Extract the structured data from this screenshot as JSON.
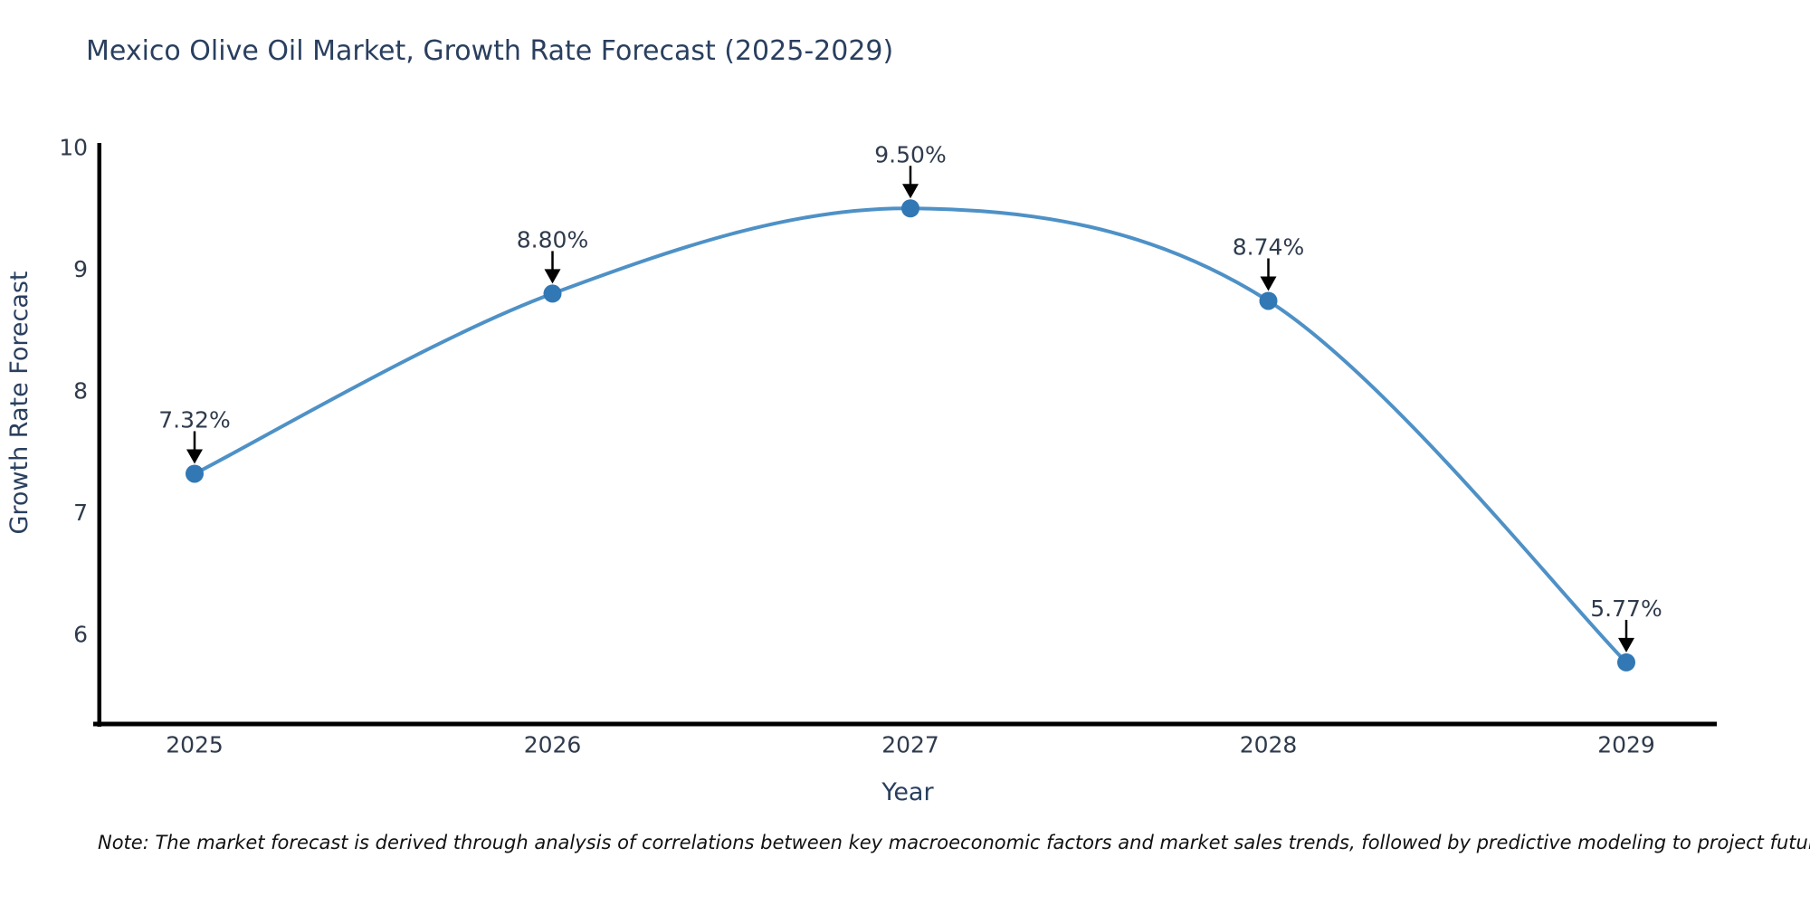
{
  "title": "Mexico Olive Oil Market, Growth Rate Forecast (2025-2029)",
  "note": "Note: The market forecast is derived through analysis of correlations between key macroeconomic factors and market sales trends, followed by predictive modeling to project future sales",
  "colors": {
    "line": "#4e91c6",
    "marker": "#3178b4",
    "axis_text": "#2a3f5f",
    "tick_text": "#2f3b4c",
    "annotation_text": "#2f3b4c",
    "annotation_arrow": "#000000",
    "spine": "#000000",
    "background": "#ffffff"
  },
  "chart_data": {
    "type": "line",
    "title": "Mexico Olive Oil Market, Growth Rate Forecast (2025-2029)",
    "xlabel": "Year",
    "ylabel": "Growth Rate Forecast",
    "x": [
      2025,
      2026,
      2027,
      2028,
      2029
    ],
    "values": [
      7.32,
      8.8,
      9.5,
      8.74,
      5.77
    ],
    "point_labels": [
      "7.32%",
      "8.80%",
      "9.50%",
      "8.74%",
      "5.77%"
    ],
    "xticks": [
      "2025",
      "2026",
      "2027",
      "2028",
      "2029"
    ],
    "yticks": [
      "10",
      "9",
      "8",
      "7",
      "6"
    ],
    "ytick_values": [
      10,
      9,
      8,
      7,
      6
    ],
    "xlim": [
      2024.73,
      2029.26
    ],
    "ylim": [
      5.27,
      10.03
    ],
    "grid": false,
    "legend": "none",
    "line_shape": "spline",
    "marker_style": "circle",
    "annotation_style": "arrow-down-to-point"
  }
}
